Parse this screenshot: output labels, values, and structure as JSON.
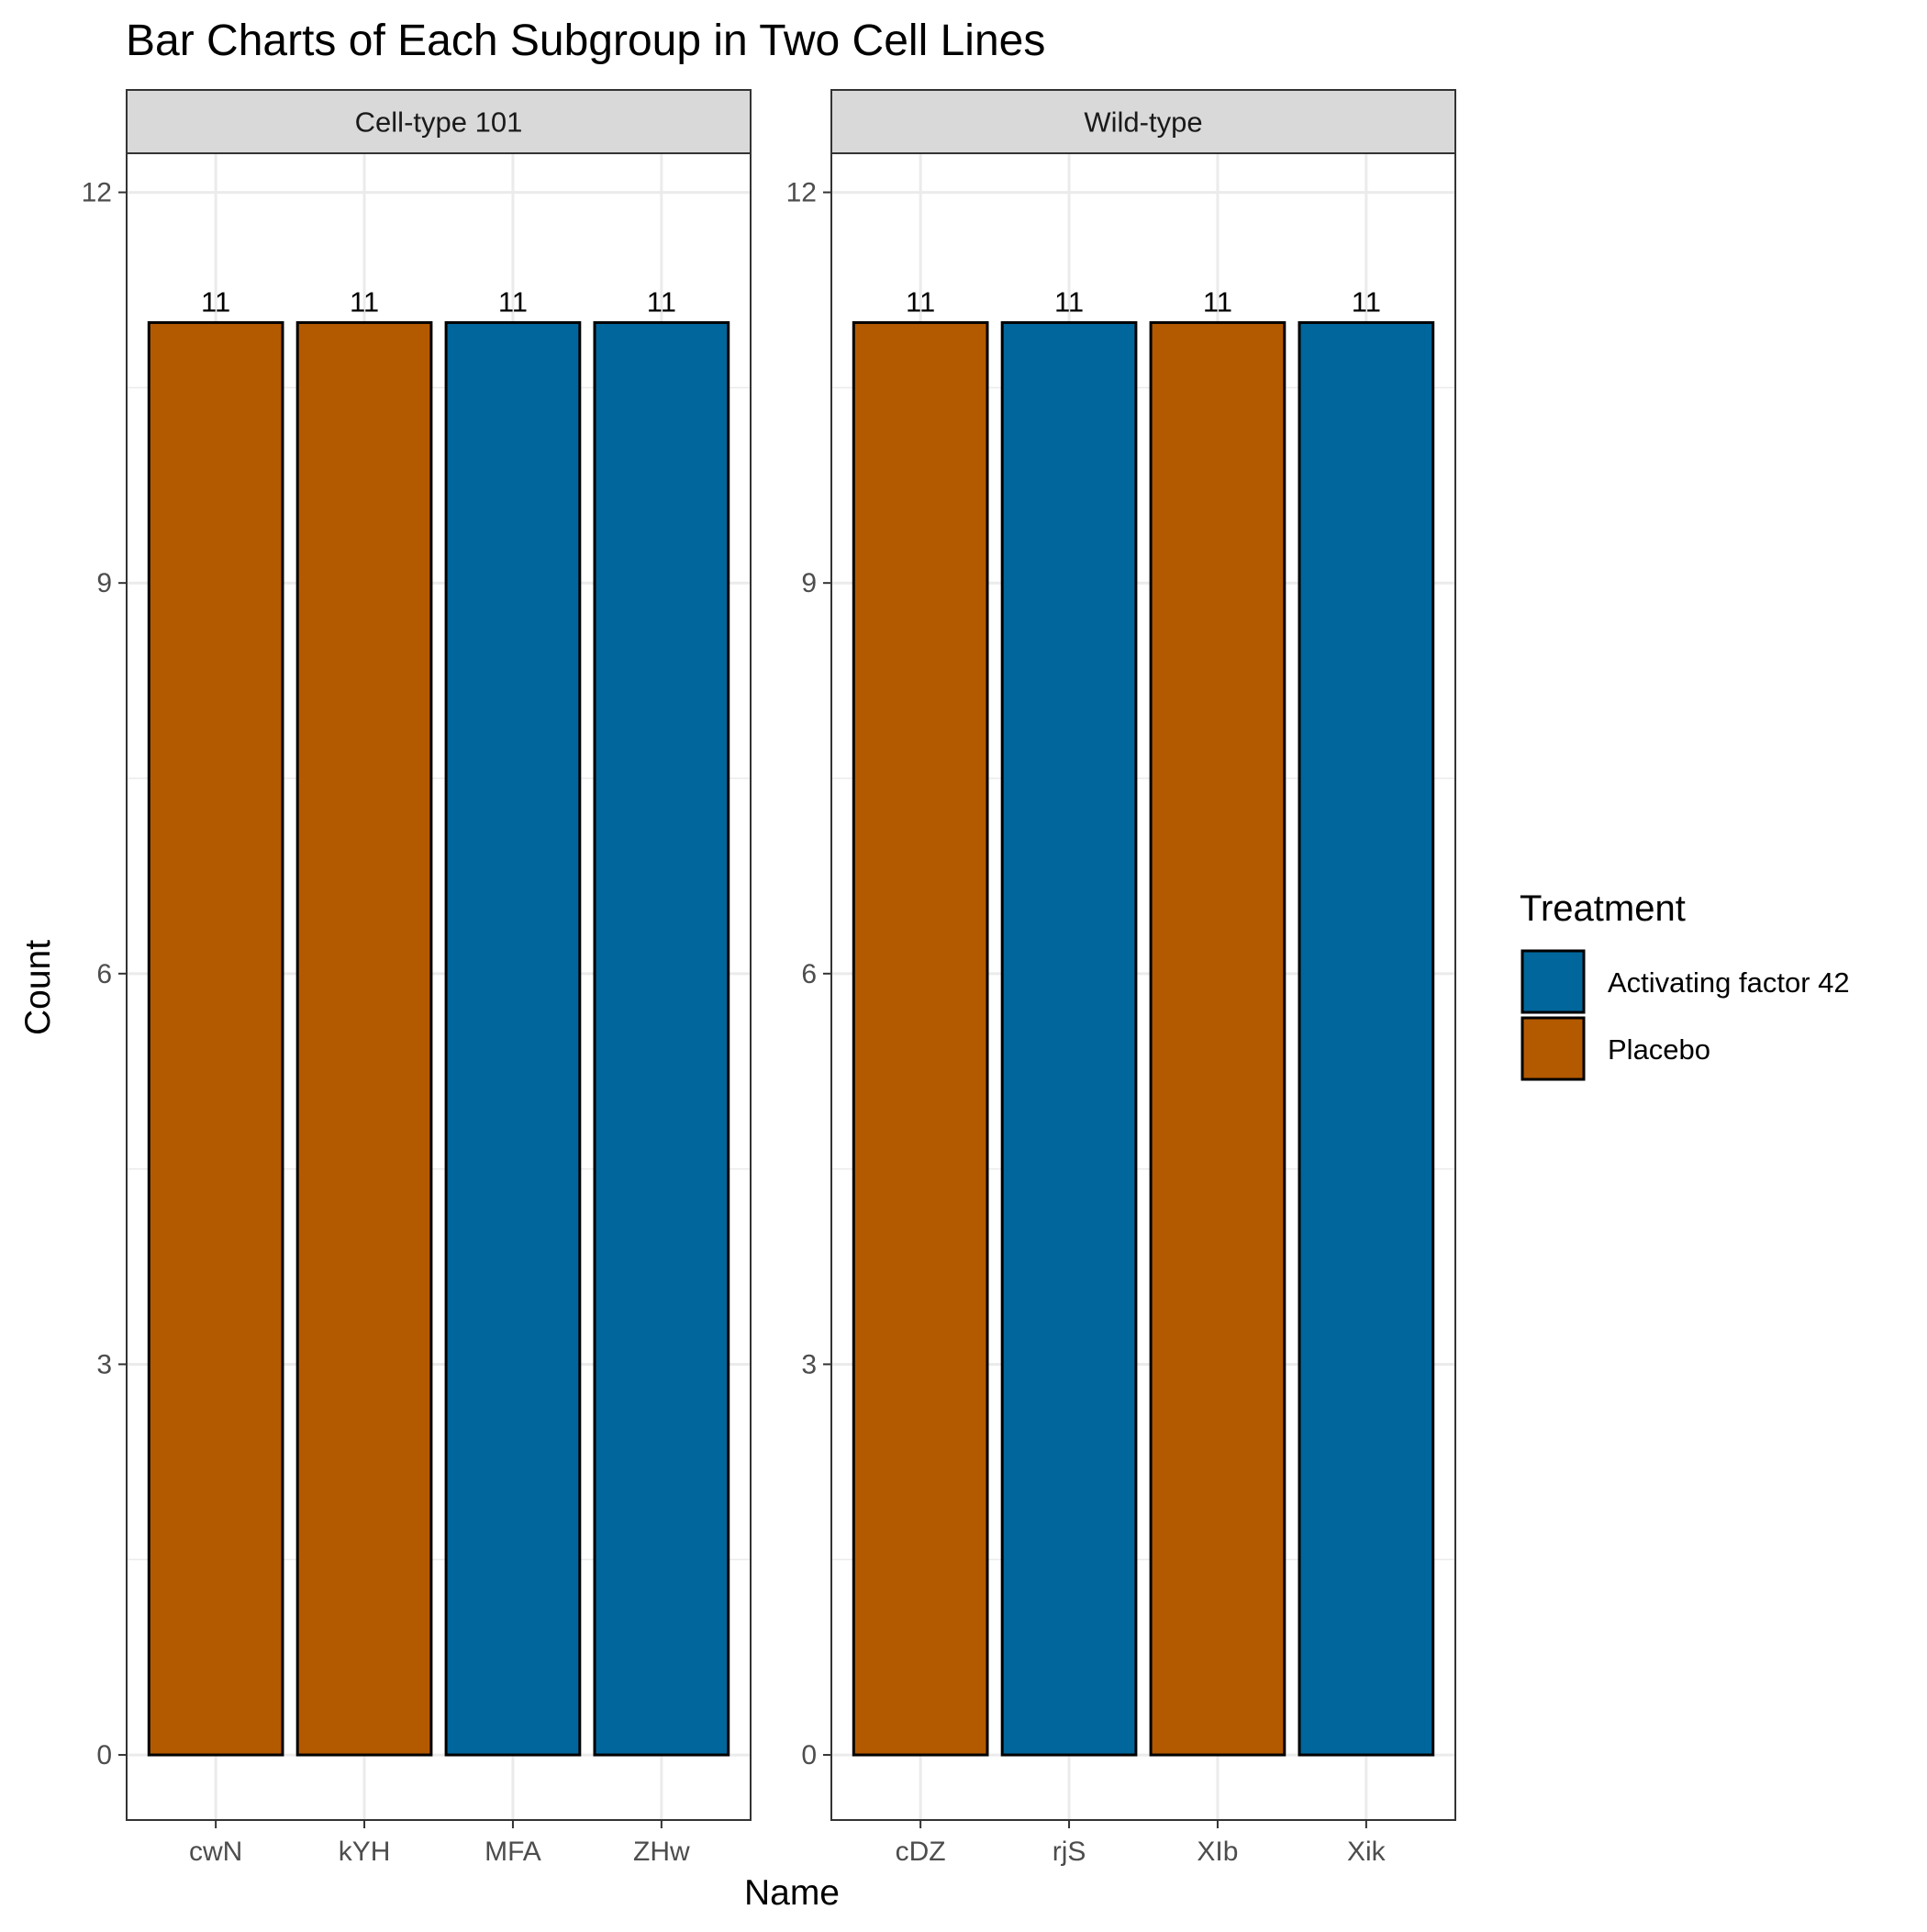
{
  "chart_data": {
    "type": "bar",
    "title": "Bar Charts of Each Subgroup in Two Cell Lines",
    "xlabel": "Name",
    "ylabel": "Count",
    "ylim": [
      -0.5,
      12.3
    ],
    "yticks": [
      0,
      3,
      6,
      9,
      12
    ],
    "grid": true,
    "legend": {
      "title": "Treatment",
      "placement": "right",
      "entries": [
        {
          "name": "Activating factor 42",
          "color": "#00669b"
        },
        {
          "name": "Placebo",
          "color": "#b35900"
        }
      ]
    },
    "panels": [
      {
        "name": "Cell-type 101",
        "categories": [
          "cwN",
          "kYH",
          "MFA",
          "ZHw"
        ],
        "values": [
          11,
          11,
          11,
          11
        ],
        "treatment": [
          "Placebo",
          "Placebo",
          "Activating factor 42",
          "Activating factor 42"
        ]
      },
      {
        "name": "Wild-type",
        "categories": [
          "cDZ",
          "rjS",
          "XIb",
          "Xik"
        ],
        "values": [
          11,
          11,
          11,
          11
        ],
        "treatment": [
          "Placebo",
          "Activating factor 42",
          "Placebo",
          "Activating factor 42"
        ]
      }
    ]
  }
}
